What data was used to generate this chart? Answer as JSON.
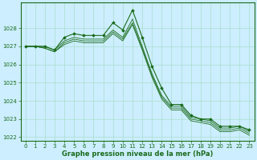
{
  "background_color": "#cceeff",
  "grid_color": "#aaddcc",
  "line_color": "#1a6b1a",
  "marker_color": "#1a6b1a",
  "xlabel": "Graphe pression niveau de la mer (hPa)",
  "xlim": [
    -0.5,
    23.5
  ],
  "ylim": [
    1021.8,
    1029.4
  ],
  "yticks": [
    1022,
    1023,
    1024,
    1025,
    1026,
    1027,
    1028
  ],
  "xticks": [
    0,
    1,
    2,
    3,
    4,
    5,
    6,
    7,
    8,
    9,
    10,
    11,
    12,
    13,
    14,
    15,
    16,
    17,
    18,
    19,
    20,
    21,
    22,
    23
  ],
  "series": [
    {
      "x": [
        0,
        1,
        2,
        3,
        4,
        5,
        6,
        7,
        8,
        9,
        10,
        11,
        12,
        13,
        14,
        15,
        16,
        17,
        18,
        19,
        20,
        21,
        22,
        23
      ],
      "y": [
        1027.0,
        1027.0,
        1027.0,
        1026.8,
        1027.5,
        1027.7,
        1027.6,
        1027.6,
        1027.6,
        1028.3,
        1027.9,
        1029.0,
        1027.5,
        1025.9,
        1024.7,
        1023.8,
        1023.8,
        1023.2,
        1023.0,
        1023.0,
        1022.6,
        1022.6,
        1022.6,
        1022.4
      ],
      "has_markers": true
    },
    {
      "x": [
        0,
        1,
        2,
        3,
        4,
        5,
        6,
        7,
        8,
        9,
        10,
        11,
        12,
        13,
        14,
        15,
        16,
        17,
        18,
        19,
        20,
        21,
        22,
        23
      ],
      "y": [
        1027.0,
        1027.0,
        1027.0,
        1026.8,
        1027.3,
        1027.5,
        1027.4,
        1027.4,
        1027.4,
        1027.9,
        1027.5,
        1028.5,
        1027.0,
        1025.5,
        1024.3,
        1023.7,
        1023.7,
        1023.1,
        1023.0,
        1022.9,
        1022.5,
        1022.5,
        1022.6,
        1022.3
      ],
      "has_markers": false
    },
    {
      "x": [
        0,
        1,
        2,
        3,
        4,
        5,
        6,
        7,
        8,
        9,
        10,
        11,
        12,
        13,
        14,
        15,
        16,
        17,
        18,
        19,
        20,
        21,
        22,
        23
      ],
      "y": [
        1027.0,
        1027.0,
        1026.9,
        1026.7,
        1027.2,
        1027.4,
        1027.3,
        1027.3,
        1027.3,
        1027.8,
        1027.4,
        1028.3,
        1026.9,
        1025.4,
        1024.2,
        1023.6,
        1023.6,
        1023.0,
        1022.9,
        1022.8,
        1022.4,
        1022.4,
        1022.5,
        1022.2
      ],
      "has_markers": false
    },
    {
      "x": [
        0,
        1,
        2,
        3,
        4,
        5,
        6,
        7,
        8,
        9,
        10,
        11,
        12,
        13,
        14,
        15,
        16,
        17,
        18,
        19,
        20,
        21,
        22,
        23
      ],
      "y": [
        1027.0,
        1027.0,
        1026.9,
        1026.7,
        1027.1,
        1027.3,
        1027.2,
        1027.2,
        1027.2,
        1027.7,
        1027.3,
        1028.2,
        1026.8,
        1025.3,
        1024.1,
        1023.5,
        1023.5,
        1022.9,
        1022.8,
        1022.7,
        1022.3,
        1022.3,
        1022.4,
        1022.1
      ],
      "has_markers": false
    }
  ],
  "tick_fontsize": 5,
  "xlabel_fontsize": 6,
  "tick_color": "#1a6b1a",
  "spine_color": "#1a6b1a"
}
